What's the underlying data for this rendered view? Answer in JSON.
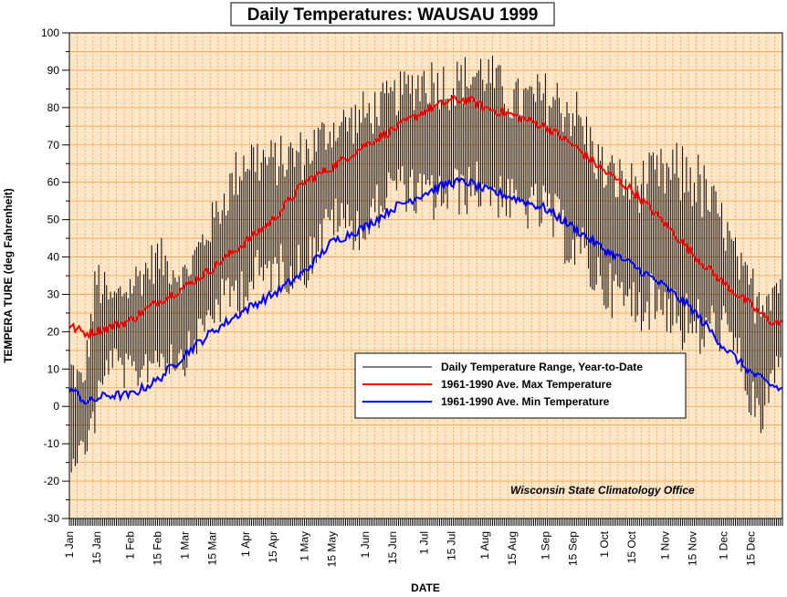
{
  "chart_data": {
    "type": "line",
    "title": "Daily Temperatures: WAUSAU 1999",
    "xlabel": "DATE",
    "ylabel": "TEMPERA TURE (deg Fahrenheit)",
    "ylim": [
      -30,
      100
    ],
    "yticks": [
      -30,
      -20,
      -10,
      0,
      10,
      20,
      30,
      40,
      50,
      60,
      70,
      80,
      90,
      100
    ],
    "xlim_day_of_year": [
      1,
      365
    ],
    "grid": true,
    "legend_placement": "center-right",
    "credit": "Wisconsin State Climatology Office",
    "colors": {
      "background": "#ffffff",
      "plot_background": "#fde6c8",
      "grid": "#f2a24a",
      "range": "#000000",
      "max": "#ff0000",
      "min": "#0000ff"
    },
    "date_ticks": [
      {
        "label": "1 Jan",
        "day": 1
      },
      {
        "label": "15 Jan",
        "day": 15
      },
      {
        "label": "1 Feb",
        "day": 32
      },
      {
        "label": "15 Feb",
        "day": 46
      },
      {
        "label": "1 Mar",
        "day": 60
      },
      {
        "label": "15 Mar",
        "day": 74
      },
      {
        "label": "1 Apr",
        "day": 91
      },
      {
        "label": "15 Apr",
        "day": 105
      },
      {
        "label": "1 May",
        "day": 121
      },
      {
        "label": "15 May",
        "day": 135
      },
      {
        "label": "1 Jun",
        "day": 152
      },
      {
        "label": "15 Jun",
        "day": 166
      },
      {
        "label": "1 Jul",
        "day": 182
      },
      {
        "label": "15 Jul",
        "day": 196
      },
      {
        "label": "1 Aug",
        "day": 213
      },
      {
        "label": "15 Aug",
        "day": 227
      },
      {
        "label": "1 Sep",
        "day": 244
      },
      {
        "label": "15 Sep",
        "day": 258
      },
      {
        "label": "1 Oct",
        "day": 274
      },
      {
        "label": "15 Oct",
        "day": 288
      },
      {
        "label": "1 Nov",
        "day": 305
      },
      {
        "label": "15 Nov",
        "day": 319
      },
      {
        "label": "1 Dec",
        "day": 335
      },
      {
        "label": "15 Dec",
        "day": 349
      }
    ],
    "legend": [
      {
        "key": "range",
        "label": "Daily Temperature Range, Year-to-Date"
      },
      {
        "key": "max",
        "label": "1961-1990 Ave. Max Temperature"
      },
      {
        "key": "min",
        "label": "1961-1990 Ave. Min Temperature"
      }
    ],
    "normal_max_anchors": {
      "day": [
        1,
        10,
        20,
        32,
        46,
        60,
        74,
        91,
        105,
        121,
        135,
        152,
        166,
        182,
        196,
        205,
        213,
        227,
        244,
        258,
        274,
        288,
        305,
        319,
        335,
        349,
        358,
        365
      ],
      "temp": [
        21.5,
        19.5,
        21,
        23,
        28,
        32,
        37,
        44,
        50,
        60,
        64,
        70,
        74,
        79,
        82,
        82,
        80,
        78,
        75,
        70,
        63,
        58,
        49,
        41,
        33,
        27,
        23,
        22
      ]
    },
    "normal_min_anchors": {
      "day": [
        1,
        10,
        20,
        32,
        46,
        60,
        74,
        91,
        105,
        121,
        135,
        152,
        166,
        182,
        196,
        205,
        213,
        227,
        244,
        258,
        274,
        288,
        305,
        319,
        335,
        349,
        358,
        365
      ],
      "temp": [
        5,
        1,
        3,
        3,
        7,
        14,
        20,
        26,
        30,
        36,
        44,
        48,
        53,
        57,
        60,
        60,
        58,
        56,
        53,
        48,
        42,
        38,
        32,
        26,
        16,
        9,
        6,
        4.5
      ]
    },
    "daily_range_envelope": {
      "day": [
        1,
        8,
        15,
        22,
        32,
        46,
        60,
        74,
        91,
        105,
        121,
        135,
        152,
        166,
        182,
        196,
        213,
        227,
        244,
        258,
        274,
        288,
        305,
        319,
        335,
        345,
        352,
        365
      ],
      "high": [
        16,
        10,
        42,
        32,
        38,
        46,
        40,
        55,
        75,
        72,
        75,
        80,
        85,
        88,
        95,
        93,
        97,
        88,
        90,
        88,
        70,
        66,
        70,
        72,
        55,
        40,
        38,
        38
      ],
      "low": [
        -18,
        -16,
        -8,
        10,
        2,
        8,
        8,
        20,
        25,
        30,
        30,
        45,
        40,
        55,
        48,
        50,
        52,
        48,
        45,
        35,
        25,
        20,
        20,
        10,
        15,
        5,
        -14,
        10
      ]
    }
  }
}
